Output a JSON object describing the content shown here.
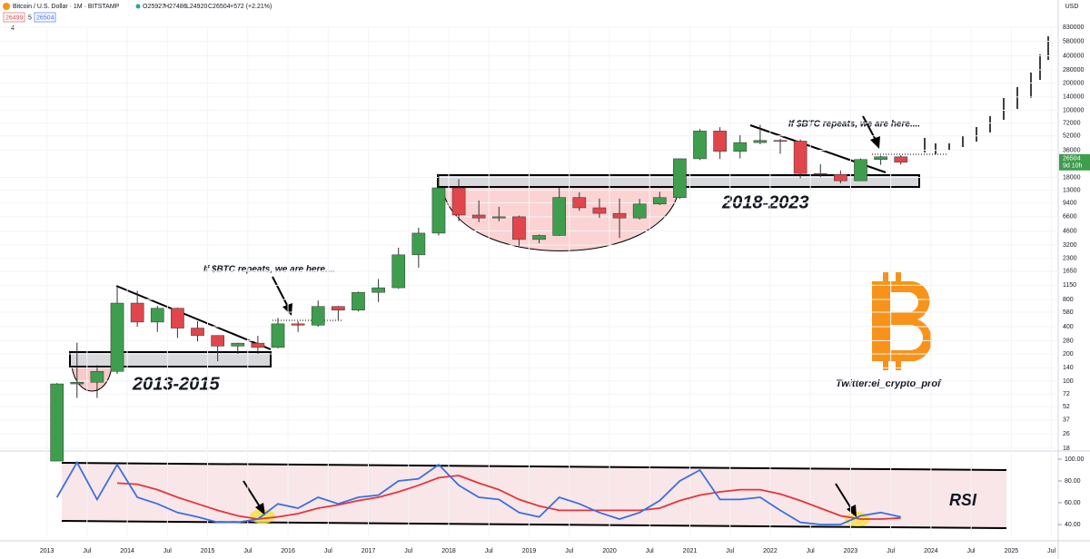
{
  "header": {
    "symbol": "Bitcoin / U.S. Dollar · 1M · BITSTAMP",
    "open": "O25927",
    "high": "H27486",
    "low": "L24920",
    "close": "C26504",
    "change": "+572 (+2.21%)",
    "bid": "26499",
    "spread": "5",
    "ask": "26504",
    "indicators": "4",
    "currency": "USD"
  },
  "chart_data": {
    "type": "candlestick",
    "log_scale": true,
    "grid": true,
    "up_color": "#3f9d4e",
    "down_color": "#e0464c",
    "rsi_color": "#3b6fe0",
    "rsi_ma_color": "#e8343b",
    "x": [
      "2013-01",
      "2013-04",
      "2013-07",
      "2013-10",
      "2014-01",
      "2014-04",
      "2014-07",
      "2014-10",
      "2015-01",
      "2015-04",
      "2015-07",
      "2015-10",
      "2016-01",
      "2016-04",
      "2016-07",
      "2016-10",
      "2017-01",
      "2017-04",
      "2017-07",
      "2017-10",
      "2018-01",
      "2018-04",
      "2018-07",
      "2018-10",
      "2019-01",
      "2019-04",
      "2019-07",
      "2019-10",
      "2020-01",
      "2020-04",
      "2020-07",
      "2020-10",
      "2021-01",
      "2021-04",
      "2021-07",
      "2021-10",
      "2022-01",
      "2022-04",
      "2022-07",
      "2022-10",
      "2023-01",
      "2023-04",
      "2023-07"
    ],
    "open": [
      13,
      93,
      97,
      128,
      730,
      450,
      640,
      386,
      320,
      244,
      263,
      236,
      430,
      416,
      670,
      610,
      960,
      1080,
      2500,
      4350,
      13800,
      6900,
      6400,
      6600,
      3700,
      4100,
      10800,
      8300,
      7200,
      6400,
      9140,
      10780,
      28990,
      58800,
      35040,
      43800,
      46200,
      45500,
      19900,
      19400,
      16530,
      28450,
      30470
    ],
    "high": [
      95,
      266,
      150,
      1163,
      1000,
      680,
      650,
      460,
      320,
      266,
      317,
      500,
      460,
      780,
      680,
      980,
      1350,
      3000,
      5000,
      19660,
      17200,
      9990,
      8500,
      6800,
      4200,
      13880,
      12300,
      10500,
      10500,
      10400,
      12480,
      29300,
      61800,
      64900,
      52900,
      69000,
      48200,
      47500,
      25200,
      21500,
      29200,
      31400,
      31800
    ],
    "low": [
      13,
      65,
      65,
      120,
      400,
      350,
      300,
      275,
      166,
      200,
      200,
      230,
      350,
      400,
      470,
      590,
      750,
      1050,
      1800,
      4100,
      5900,
      5750,
      5880,
      3150,
      3350,
      4050,
      7700,
      6430,
      3850,
      6150,
      8890,
      10400,
      28100,
      28800,
      29300,
      42000,
      32950,
      17600,
      18150,
      15480,
      16490,
      24780,
      24920
    ],
    "close": [
      93,
      97,
      128,
      730,
      450,
      640,
      386,
      320,
      244,
      263,
      236,
      430,
      416,
      670,
      610,
      960,
      1080,
      2500,
      4350,
      13800,
      6900,
      6400,
      6600,
      3700,
      4100,
      10800,
      8300,
      7200,
      6400,
      9140,
      10780,
      28990,
      58800,
      35040,
      43800,
      46200,
      45500,
      19900,
      19400,
      16530,
      28450,
      30470,
      26504
    ],
    "ylim": [
      18,
      830000
    ],
    "yticks": [
      830000,
      580000,
      400000,
      280000,
      200000,
      140000,
      100000,
      72000,
      52000,
      36000,
      18000,
      13000,
      9400,
      6600,
      4600,
      3200,
      2300,
      1650,
      1150,
      800,
      580,
      400,
      280,
      200,
      140,
      100,
      72,
      52,
      37,
      26,
      18
    ],
    "last_price_label": "26504",
    "countdown": "9d 10h",
    "xlim": [
      "2012-06",
      "2025-08"
    ],
    "xticks": [
      {
        "value": "2013-01",
        "label": "2013"
      },
      {
        "value": "2013-07",
        "label": "Jul"
      },
      {
        "value": "2014-01",
        "label": "2014"
      },
      {
        "value": "2014-07",
        "label": "Jul"
      },
      {
        "value": "2015-01",
        "label": "2015"
      },
      {
        "value": "2015-07",
        "label": "Jul"
      },
      {
        "value": "2016-01",
        "label": "2016"
      },
      {
        "value": "2016-07",
        "label": "Jul"
      },
      {
        "value": "2017-01",
        "label": "2017"
      },
      {
        "value": "2017-07",
        "label": "Jul"
      },
      {
        "value": "2018-01",
        "label": "2018"
      },
      {
        "value": "2018-07",
        "label": "Jul"
      },
      {
        "value": "2019-01",
        "label": "2019"
      },
      {
        "value": "2019-07",
        "label": "Jul"
      },
      {
        "value": "2020-01",
        "label": "2020"
      },
      {
        "value": "2020-07",
        "label": "Jul"
      },
      {
        "value": "2021-01",
        "label": "2021"
      },
      {
        "value": "2021-07",
        "label": "Jul"
      },
      {
        "value": "2022-01",
        "label": "2022"
      },
      {
        "value": "2022-07",
        "label": "Jul"
      },
      {
        "value": "2023-01",
        "label": "2023"
      },
      {
        "value": "2023-07",
        "label": "Jul"
      },
      {
        "value": "2024-01",
        "label": "2024"
      },
      {
        "value": "2024-07",
        "label": "Jul"
      },
      {
        "value": "2025-01",
        "label": "2025"
      },
      {
        "value": "2025-07",
        "label": "Jul"
      }
    ],
    "rsi_values": [
      65,
      97,
      63,
      95,
      65,
      59,
      51,
      47,
      42,
      42,
      45,
      59,
      55,
      65,
      59,
      65,
      67,
      80,
      82,
      95,
      76,
      65,
      63,
      51,
      47,
      65,
      59,
      51,
      45,
      51,
      62,
      80,
      90,
      63,
      63,
      65,
      53,
      42,
      40,
      40,
      48,
      51,
      47
    ],
    "rsi_ma_values": [
      null,
      null,
      null,
      78,
      77,
      72,
      65,
      59,
      53,
      48,
      45,
      47,
      50,
      55,
      58,
      62,
      65,
      70,
      76,
      83,
      85,
      78,
      72,
      63,
      57,
      53,
      53,
      53,
      53,
      53,
      55,
      62,
      67,
      70,
      72,
      72,
      68,
      62,
      55,
      48,
      45,
      45,
      46
    ],
    "rsi_ylim": [
      30,
      105
    ],
    "rsi_yticks": [
      {
        "value": 100,
        "label": "100.00"
      },
      {
        "value": 80,
        "label": "80.00"
      },
      {
        "value": 60,
        "label": "60.00"
      },
      {
        "value": 40,
        "label": "40.00"
      }
    ],
    "annotations": [
      "If $BTC repeats, we are here....",
      "If $BTC repeats, we are here....",
      "2013-2015",
      "2018-2023",
      "Twitter:el_crypto_prof",
      "RSI"
    ]
  }
}
